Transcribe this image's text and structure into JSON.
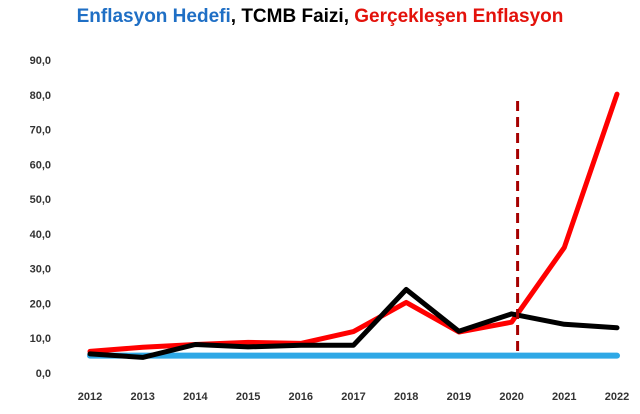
{
  "chart_data": {
    "type": "line",
    "title_parts": [
      {
        "text": "Enflasyon Hedefi",
        "color": "#1F6FC5"
      },
      {
        "text": ", ",
        "color": "#000000"
      },
      {
        "text": "TCMB Faizi",
        "color": "#000000"
      },
      {
        "text": ", ",
        "color": "#000000"
      },
      {
        "text": "Gerçekleşen Enflasyon",
        "color": "#E3120B"
      }
    ],
    "categories": [
      "2012",
      "2013",
      "2014",
      "2015",
      "2016",
      "2017",
      "2018",
      "2019",
      "2020",
      "2021",
      "2022"
    ],
    "y_ticks": [
      "0,0",
      "10,0",
      "20,0",
      "30,0",
      "40,0",
      "50,0",
      "60,0",
      "70,0",
      "80,0",
      "90,0"
    ],
    "ylim": [
      0,
      90
    ],
    "grid": false,
    "series": [
      {
        "key": "target",
        "color": "#2EA8E6",
        "values": [
          5,
          5,
          5,
          5,
          5,
          5,
          5,
          5,
          5,
          5,
          5
        ]
      },
      {
        "key": "inflation",
        "color": "#FF0000",
        "values": [
          6.2,
          7.4,
          8.2,
          8.8,
          8.5,
          11.9,
          20.3,
          11.8,
          14.6,
          36.1,
          80.2
        ]
      },
      {
        "key": "policy_rate",
        "color": "#000000",
        "values": [
          5.5,
          4.5,
          8.2,
          7.5,
          8.0,
          8.0,
          24.0,
          12.0,
          17.0,
          14.0,
          13.0
        ]
      }
    ],
    "annotation": {
      "type": "vertical-dashed-line",
      "at": "2020",
      "color": "#A50000"
    }
  }
}
